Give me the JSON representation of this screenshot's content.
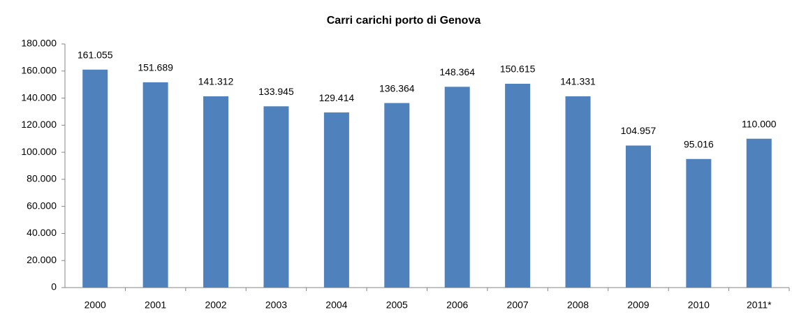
{
  "chart_data": {
    "type": "bar",
    "title": "Carri carichi porto di Genova",
    "categories": [
      "2000",
      "2001",
      "2002",
      "2003",
      "2004",
      "2005",
      "2006",
      "2007",
      "2008",
      "2009",
      "2010",
      "2011*"
    ],
    "values": [
      161055,
      151689,
      141312,
      133945,
      129414,
      136364,
      148364,
      150615,
      141331,
      104957,
      95016,
      110000
    ],
    "value_labels": [
      "161.055",
      "151.689",
      "141.312",
      "133.945",
      "129.414",
      "136.364",
      "148.364",
      "150.615",
      "141.331",
      "104.957",
      "95.016",
      "110.000"
    ],
    "color": "#4f81bd",
    "ylim": [
      0,
      180000
    ],
    "yticks": [
      0,
      {
        "value": 20000,
        "label": "20.000"
      },
      {
        "value": 40000,
        "label": "40.000"
      },
      {
        "value": 60000,
        "label": "60.000"
      },
      {
        "value": 80000,
        "label": "80.000"
      },
      {
        "value": 100000,
        "label": "100.000"
      },
      {
        "value": 120000,
        "label": "120.000"
      },
      {
        "value": 140000,
        "label": "140.000"
      },
      {
        "value": 160000,
        "label": "160.000"
      },
      {
        "value": 180000,
        "label": "180.000"
      }
    ],
    "grid": false
  }
}
